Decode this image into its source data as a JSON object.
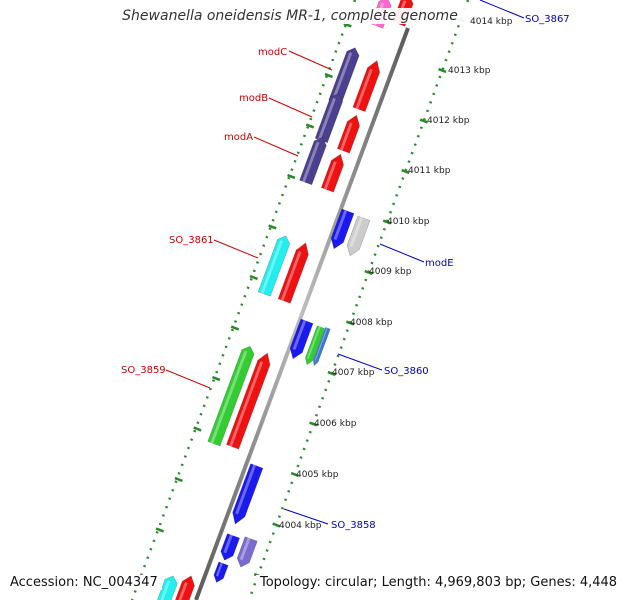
{
  "title": "Shewanella oneidensis MR-1, complete genome",
  "footer": {
    "accession": "Accession: NC_004347",
    "summary": "Topology: circular; Length: 4,969,803 bp; Genes: 4,448"
  },
  "colors": {
    "backbone": "#8a8a8a",
    "tick_green": "#2a8a2a",
    "label_forward": "#cc0000",
    "label_reverse": "#0000cc"
  },
  "scale": {
    "unit": "kbp",
    "ticks": [
      "4004 kbp",
      "4005 kbp",
      "4006 kbp",
      "4007 kbp",
      "4008 kbp",
      "4009 kbp",
      "4010 kbp",
      "4011 kbp",
      "4012 kbp",
      "4013 kbp",
      "4014 kbp"
    ]
  },
  "gene_labels": {
    "forward": [
      {
        "name": "modC",
        "color": "#cc0000"
      },
      {
        "name": "modB",
        "color": "#cc0000"
      },
      {
        "name": "modA",
        "color": "#cc0000"
      },
      {
        "name": "SO_3861",
        "color": "#cc0000"
      },
      {
        "name": "SO_3859",
        "color": "#cc0000"
      }
    ],
    "reverse": [
      {
        "name": "SO_3867",
        "color": "#0000cc"
      },
      {
        "name": "modE",
        "color": "#0000cc"
      },
      {
        "name": "SO_3860",
        "color": "#0000cc"
      },
      {
        "name": "SO_3858",
        "color": "#0000cc"
      }
    ]
  },
  "feature_colors": {
    "dark_purple": "#4b3f8f",
    "red": "#ee1111",
    "blue": "#1a1aee",
    "cyan": "#22eeee",
    "green": "#33cc33",
    "grey": "#cccccc",
    "light_purple": "#7b6bd0",
    "pink": "#ff66cc"
  }
}
